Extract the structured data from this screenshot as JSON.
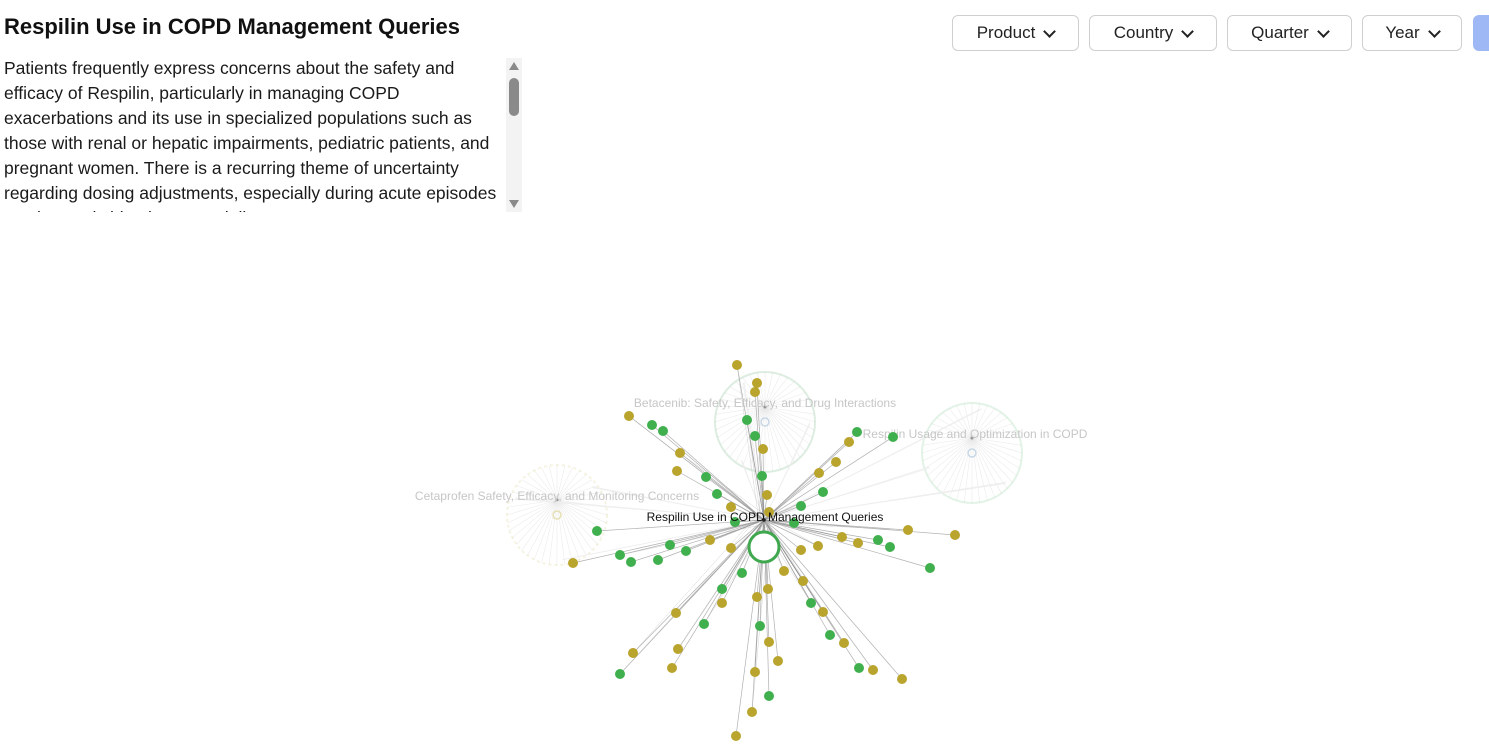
{
  "header": {
    "title": "Respilin Use in COPD Management Queries",
    "summary": "Patients frequently express concerns about the safety and efficacy of Respilin, particularly in managing COPD exacerbations and its use in specialized populations such as those with renal or hepatic impairments, pediatric patients, and pregnant women. There is a recurring theme of uncertainty regarding dosing adjustments, especially during acute episodes or when switching between delivery"
  },
  "filters": {
    "product": "Product",
    "country": "Country",
    "quarter": "Quarter",
    "year": "Year"
  },
  "colors": {
    "green": "#3fb04d",
    "olive": "#b9a42d",
    "ring": "#3fa84e",
    "edge": "#8f8f8f"
  },
  "graph": {
    "main_label": "Respilin Use in COPD Management Queries",
    "clusters": [
      "Betacenib: Safety, Efficacy, and Drug Interactions",
      "Respilin Usage and Optimization in COPD",
      "Cetaprofen Safety, Efficacy, and Monitoring Concerns"
    ]
  }
}
